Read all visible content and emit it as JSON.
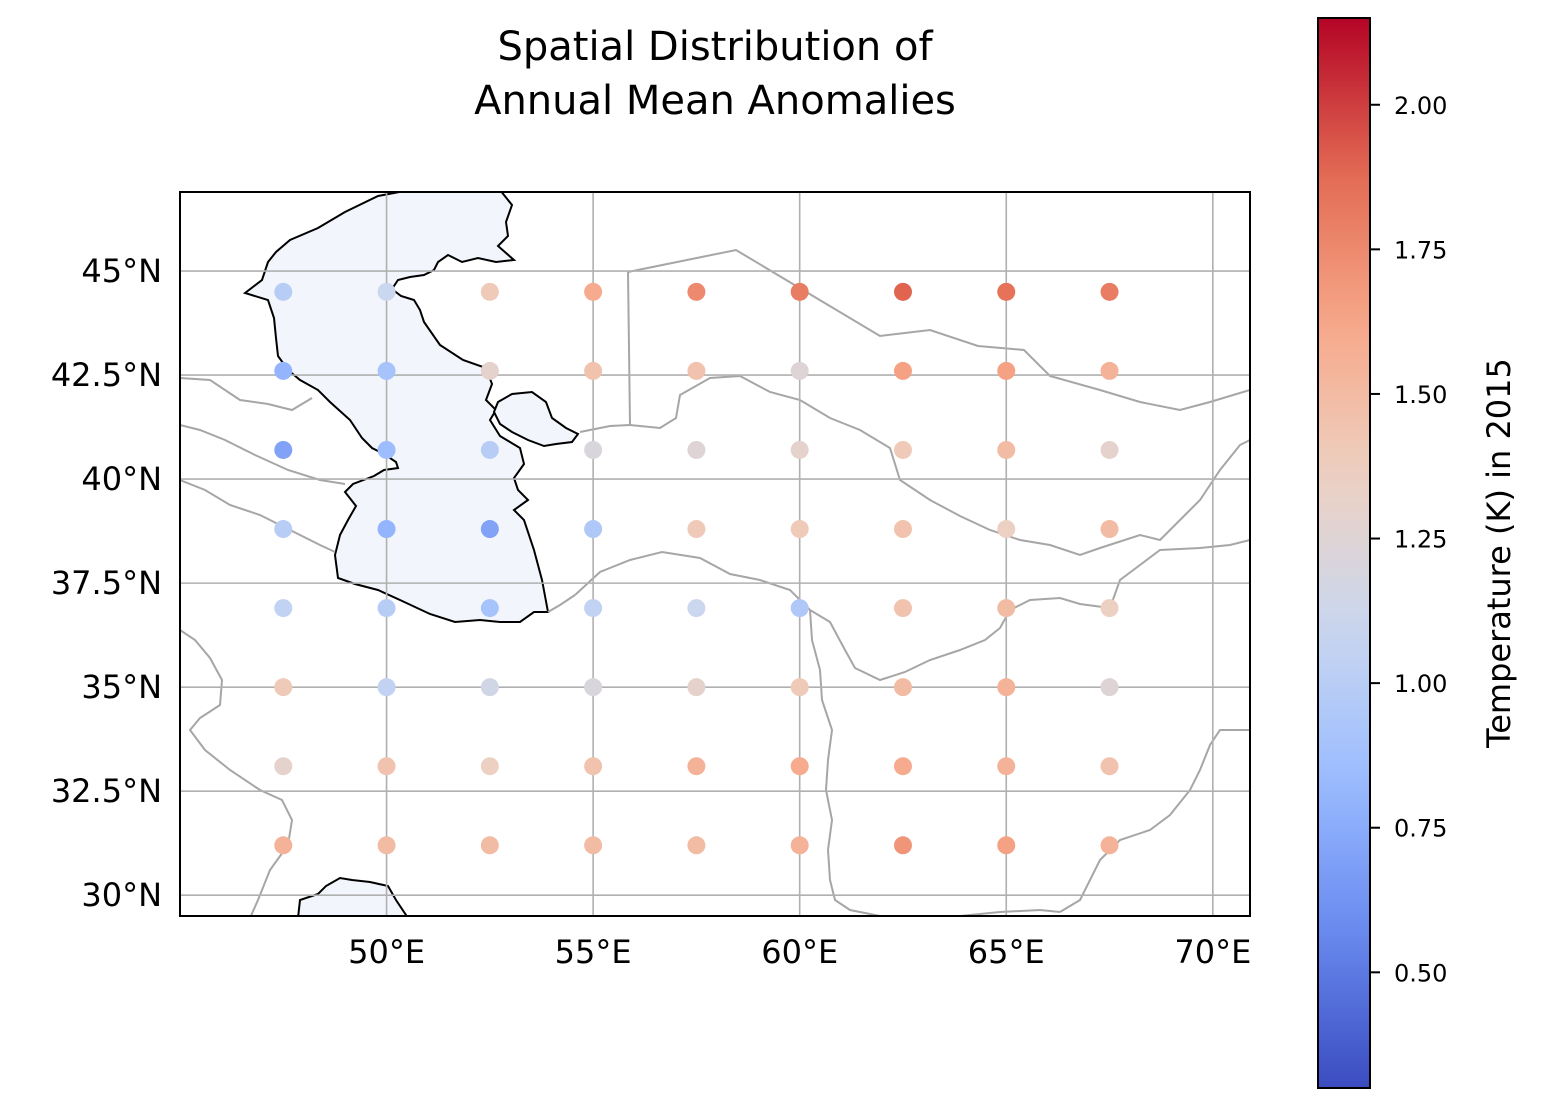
{
  "title": "Spatial Distribution of\nAnnual Mean Anomalies",
  "colormap": {
    "name": "coolwarm",
    "stops": [
      "#3b4cc0",
      "#6788ee",
      "#9abbff",
      "#c9d7f0",
      "#edd1c2",
      "#f7a889",
      "#e26952",
      "#b40426"
    ]
  },
  "land_border_color": "#a6a6a6",
  "sea_color": "#f2f6fc",
  "chart_data": {
    "type": "scatter",
    "title": "Spatial Distribution of\nAnnual Mean Anomalies",
    "xlim": [
      45.0,
      70.9
    ],
    "ylim": [
      29.5,
      46.9
    ],
    "x_ticks": [
      50,
      55,
      60,
      65,
      70
    ],
    "x_tick_labels": [
      "50°E",
      "55°E",
      "60°E",
      "65°E",
      "70°E"
    ],
    "y_ticks": [
      30,
      32.5,
      35,
      37.5,
      40,
      42.5,
      45
    ],
    "y_tick_labels": [
      "30°N",
      "32.5°N",
      "35°N",
      "37.5°N",
      "40°N",
      "42.5°N",
      "45°N"
    ],
    "grid": true,
    "colorbar": {
      "label": "Temperature (K) in 2015",
      "vmin": 0.3,
      "vmax": 2.15,
      "ticks": [
        0.5,
        0.75,
        1.0,
        1.25,
        1.5,
        1.75,
        2.0
      ],
      "tick_labels": [
        "0.50",
        "0.75",
        "1.00",
        "1.25",
        "1.50",
        "1.75",
        "2.00"
      ]
    },
    "lons": [
      47.5,
      50.0,
      52.5,
      55.0,
      57.5,
      60.0,
      62.5,
      65.0,
      67.5
    ],
    "lats": [
      44.5,
      42.6,
      40.7,
      38.8,
      36.9,
      35.0,
      33.1,
      31.2
    ],
    "values": [
      [
        1.0,
        1.1,
        1.4,
        1.6,
        1.75,
        1.8,
        1.9,
        1.85,
        1.8
      ],
      [
        0.8,
        0.9,
        1.3,
        1.45,
        1.45,
        1.25,
        1.65,
        1.65,
        1.55
      ],
      [
        0.7,
        0.85,
        1.0,
        1.2,
        1.25,
        1.3,
        1.4,
        1.5,
        1.3
      ],
      [
        1.0,
        0.8,
        0.7,
        0.95,
        1.4,
        1.4,
        1.45,
        1.35,
        1.5
      ],
      [
        1.05,
        1.0,
        0.9,
        1.05,
        1.1,
        0.95,
        1.45,
        1.5,
        1.35
      ],
      [
        1.4,
        1.05,
        1.15,
        1.2,
        1.3,
        1.4,
        1.5,
        1.55,
        1.25
      ],
      [
        1.3,
        1.45,
        1.35,
        1.45,
        1.55,
        1.6,
        1.6,
        1.55,
        1.45
      ],
      [
        1.55,
        1.5,
        1.5,
        1.5,
        1.5,
        1.55,
        1.7,
        1.65,
        1.55
      ]
    ]
  }
}
